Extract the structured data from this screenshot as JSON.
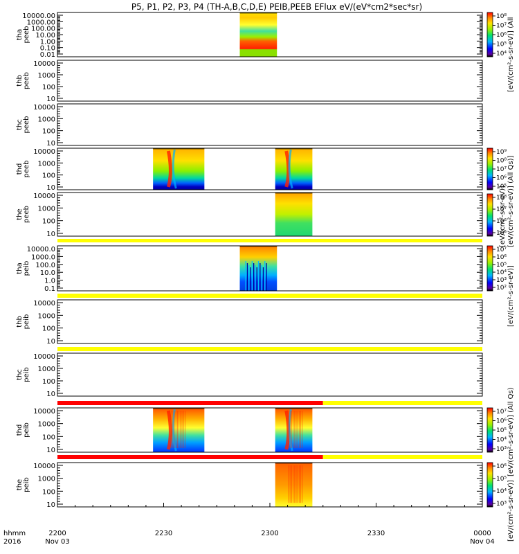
{
  "chart_data": {
    "type": "heatmap",
    "title": "P5, P1, P2, P3, P4 (TH-A,B,C,D,E) PEIB,PEEB EFlux eV/(eV*cm2*sec*sr)",
    "x_axis": {
      "label": "hhmm",
      "year": "2016",
      "range_minutes": [
        0,
        120
      ],
      "ticks": [
        {
          "minute": 0,
          "label": "2200",
          "sublabel": "Nov 03"
        },
        {
          "minute": 30,
          "label": "2230",
          "sublabel": ""
        },
        {
          "minute": 60,
          "label": "2300",
          "sublabel": ""
        },
        {
          "minute": 90,
          "label": "2330",
          "sublabel": ""
        },
        {
          "minute": 120,
          "label": "0000",
          "sublabel": "Nov 04"
        }
      ]
    },
    "colorbar_labels": {
      "cb_tha_peeb": "[eV/(cm²-s-sr-eV)] (All",
      "cb_thd_peeb": "[eV/(cm²-s-sr-eV)] (All Qs)]",
      "cb_the_peeb": "[eV/(cm²-s-sr-eV)]",
      "cb_tha_peib": "[eV/(cm²-s-sr-eV)]",
      "cb_thd_peib": "[eV/(cm²-s-sr-eV)] (All Qs)",
      "cb_the_peib": "[eV/(cm²-s-sr-eV)]"
    },
    "panels": [
      {
        "id": "tha_peeb",
        "probe": "tha",
        "instrument": "peeb",
        "yticks": [
          "10000.00",
          "1000.00",
          "100.00",
          "10.00",
          "1.00",
          "0.10",
          "0.01"
        ],
        "colorbar": {
          "labels": [
            "10⁸",
            "10⁷",
            "10⁶",
            "10⁵",
            "10⁴"
          ]
        },
        "data_spans_minutes": [
          [
            51.5,
            62.0
          ]
        ]
      },
      {
        "id": "thb_peeb",
        "probe": "thb",
        "instrument": "peeb",
        "yticks": [
          "10000",
          "1000",
          "100",
          "10"
        ],
        "colorbar": null,
        "data_spans_minutes": []
      },
      {
        "id": "thc_peeb",
        "probe": "thc",
        "instrument": "peeb",
        "yticks": [
          "10000",
          "1000",
          "100",
          "10"
        ],
        "colorbar": null,
        "data_spans_minutes": []
      },
      {
        "id": "thd_peeb",
        "probe": "thd",
        "instrument": "peeb",
        "yticks": [
          "10000",
          "1000",
          "100",
          "10"
        ],
        "colorbar": {
          "labels": [
            "10⁹",
            "10⁸",
            "10⁷",
            "10⁶",
            "10⁵"
          ]
        },
        "data_spans_minutes": [
          [
            27.0,
            41.5
          ],
          [
            61.5,
            72.0
          ]
        ]
      },
      {
        "id": "the_peeb",
        "probe": "the",
        "instrument": "peeb",
        "yticks": [
          "10000",
          "1000",
          "100",
          "10"
        ],
        "colorbar": {
          "labels": [
            "10⁸",
            "10⁷",
            "10⁶",
            "10⁵"
          ]
        },
        "data_spans_minutes": [
          [
            61.5,
            72.0
          ]
        ]
      },
      {
        "id": "tha_peib",
        "probe": "tha",
        "instrument": "peib",
        "yticks": [
          "10000.0",
          "1000.0",
          "100.0",
          "10.0",
          "1.0",
          "0.1"
        ],
        "colorbar": {
          "labels": [
            "10⁷",
            "10⁶",
            "10⁵",
            "10⁴",
            "10³",
            "10²"
          ]
        },
        "data_spans_minutes": [
          [
            51.5,
            62.0
          ]
        ]
      },
      {
        "id": "thb_peib",
        "probe": "thb",
        "instrument": "peib",
        "yticks": [
          "10000",
          "1000",
          "100",
          "10"
        ],
        "colorbar": null,
        "data_spans_minutes": []
      },
      {
        "id": "thc_peib",
        "probe": "thc",
        "instrument": "peib",
        "yticks": [
          "10000",
          "1000",
          "100",
          "10"
        ],
        "colorbar": null,
        "data_spans_minutes": []
      },
      {
        "id": "thd_peib",
        "probe": "thd",
        "instrument": "peib",
        "yticks": [
          "10000",
          "1000",
          "100",
          "10"
        ],
        "colorbar": {
          "labels": [
            "10⁷",
            "10⁶",
            "10⁵",
            "10⁴",
            "10³"
          ]
        },
        "data_spans_minutes": [
          [
            27.0,
            41.5
          ],
          [
            61.5,
            72.0
          ]
        ]
      },
      {
        "id": "the_peib",
        "probe": "the",
        "instrument": "peib",
        "yticks": [
          "10000",
          "1000",
          "100",
          "10"
        ],
        "colorbar": {
          "labels": [
            "10⁶",
            "10⁵",
            "10⁴",
            "10³"
          ]
        },
        "data_spans_minutes": [
          [
            61.5,
            72.0
          ]
        ]
      }
    ],
    "flag_bars": [
      {
        "between": "the_peeb|tha_peib",
        "segments": [
          {
            "from": 0,
            "to": 120,
            "color": "yellow"
          }
        ]
      },
      {
        "between": "tha_peib|thb_peib",
        "segments": [
          {
            "from": 0,
            "to": 120,
            "color": "yellow"
          }
        ]
      },
      {
        "between": "thb_peib|thc_peib",
        "segments": [
          {
            "from": 0,
            "to": 120,
            "color": "yellow"
          }
        ]
      },
      {
        "between": "thc_peib|thd_peib",
        "segments": [
          {
            "from": 0,
            "to": 75,
            "color": "red"
          },
          {
            "from": 75,
            "to": 120,
            "color": "yellow"
          }
        ]
      },
      {
        "between": "thd_peib|the_peib",
        "segments": [
          {
            "from": 0,
            "to": 75,
            "color": "red"
          },
          {
            "from": 75,
            "to": 120,
            "color": "yellow"
          }
        ]
      }
    ],
    "colors": {
      "red": "#ff0000",
      "yellow": "#ffff00"
    }
  }
}
